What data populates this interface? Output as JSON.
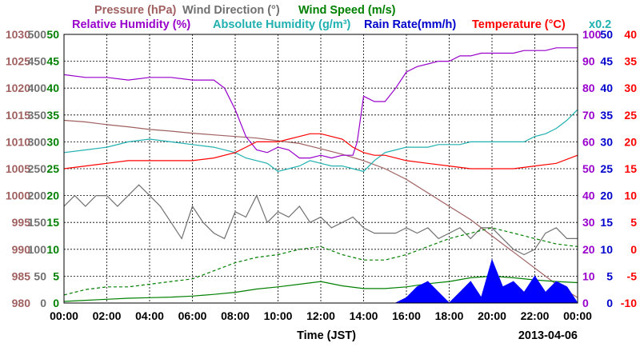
{
  "chart_data": {
    "type": "line",
    "date": "2013-04-06",
    "xlabel": "Time (JST)",
    "x_ticks": [
      "00:00",
      "02:00",
      "04:00",
      "06:00",
      "08:00",
      "10:00",
      "12:00",
      "14:00",
      "16:00",
      "18:00",
      "20:00",
      "22:00",
      "00:00"
    ],
    "x_range_hours": [
      0,
      24
    ],
    "grid": true,
    "headers": {
      "pressure": "Pressure (hPa)",
      "wind_direction": "Wind Direction (°)",
      "wind_speed": "Wind Speed (m/s)",
      "relative_humidity": "Relative Humidity (%)",
      "absolute_humidity": "Absolute Humidity (g/m³)",
      "rain_rate": "Rain Rate(mm/h)",
      "temperature": "Temperature (°C)",
      "absolute_humidity_scale": "x0.2"
    },
    "axes": [
      {
        "name": "pressure",
        "label": "Pressure (hPa)",
        "range": [
          980,
          1030
        ],
        "ticks": [
          "980",
          "985",
          "990",
          "995",
          "1000",
          "1005",
          "1010",
          "1015",
          "1020",
          "1025",
          "1030"
        ],
        "color": "#a06060"
      },
      {
        "name": "wind_direction",
        "label": "Wind Direction (°)",
        "range": [
          0,
          500
        ],
        "ticks": [
          "0",
          "50",
          "100",
          "150",
          "200",
          "250",
          "300",
          "350",
          "400",
          "450",
          "500"
        ],
        "color": "#707070"
      },
      {
        "name": "wind_speed",
        "label": "Wind Speed (m/s)",
        "range": [
          0,
          50
        ],
        "ticks": [
          "0",
          "5",
          "10",
          "15",
          "20",
          "25",
          "30",
          "35",
          "40",
          "45",
          "50"
        ],
        "color": "#008000"
      },
      {
        "name": "relative_humidity",
        "label": "Relative Humidity (%)",
        "range": [
          0,
          100
        ],
        "ticks": [
          "0",
          "10",
          "20",
          "30",
          "40",
          "50",
          "60",
          "70",
          "80",
          "90",
          "100"
        ],
        "color": "#9900cc"
      },
      {
        "name": "rain_rate",
        "label": "Rain Rate(mm/h)",
        "range": [
          0,
          50
        ],
        "ticks": [
          "0",
          "5",
          "10",
          "15",
          "20",
          "25",
          "30",
          "35",
          "40",
          "45",
          "50"
        ],
        "color": "#0000cc"
      },
      {
        "name": "temperature",
        "label": "Temperature (°C)",
        "range": [
          -10,
          40
        ],
        "ticks": [
          "-10",
          "-5",
          "0",
          "5",
          "10",
          "15",
          "20",
          "25",
          "30",
          "35",
          "40"
        ],
        "color": "#ff0000"
      }
    ],
    "series": [
      {
        "name": "Pressure (hPa)",
        "axis": "pressure",
        "color": "#a06060",
        "x": [
          0,
          1,
          2,
          3,
          4,
          5,
          6,
          7,
          8,
          9,
          10,
          11,
          12,
          13,
          14,
          15,
          16,
          17,
          18,
          19,
          20,
          21,
          22,
          23,
          24
        ],
        "y": [
          1014,
          1013.7,
          1013.2,
          1012.8,
          1012.3,
          1012,
          1011.6,
          1011.3,
          1011,
          1010.7,
          1010.2,
          1009.7,
          1008.7,
          1007.7,
          1006.5,
          1005,
          1003,
          1000.5,
          998,
          995.5,
          992.5,
          989.5,
          986.5,
          983.5,
          981
        ]
      },
      {
        "name": "Wind Direction (°)",
        "axis": "wind_direction",
        "color": "#707070",
        "x": [
          0,
          0.5,
          1,
          1.5,
          2,
          2.5,
          3,
          3.5,
          4,
          4.5,
          5,
          5.5,
          6,
          6.5,
          7,
          7.5,
          8,
          8.5,
          9,
          9.5,
          10,
          10.5,
          11,
          11.5,
          12,
          12.5,
          13,
          13.5,
          14,
          14.5,
          15,
          15.5,
          16,
          16.5,
          17,
          17.5,
          18,
          18.5,
          19,
          19.5,
          20,
          20.5,
          21,
          21.5,
          22,
          22.5,
          23,
          23.5,
          24
        ],
        "y": [
          180,
          200,
          180,
          200,
          200,
          180,
          200,
          220,
          200,
          180,
          150,
          120,
          180,
          150,
          130,
          120,
          170,
          160,
          200,
          150,
          170,
          160,
          180,
          150,
          160,
          140,
          150,
          160,
          140,
          130,
          130,
          130,
          140,
          130,
          140,
          120,
          130,
          140,
          120,
          140,
          140,
          120,
          100,
          90,
          100,
          130,
          140,
          120,
          120
        ]
      },
      {
        "name": "Wind Speed (m/s) avg",
        "axis": "wind_speed",
        "color": "#008000",
        "x": [
          0,
          1,
          2,
          3,
          4,
          5,
          6,
          7,
          8,
          9,
          10,
          11,
          12,
          13,
          14,
          15,
          16,
          17,
          18,
          19,
          20,
          21,
          22,
          23,
          24
        ],
        "y": [
          0.3,
          0.5,
          0.7,
          0.9,
          1.0,
          1.1,
          1.3,
          1.6,
          2.0,
          2.6,
          3.0,
          3.5,
          4.0,
          3.2,
          2.7,
          2.7,
          3.0,
          3.6,
          4.0,
          4.7,
          5.0,
          4.7,
          4.3,
          4.0,
          3.8
        ]
      },
      {
        "name": "Wind Speed (m/s) gust",
        "axis": "wind_speed",
        "color": "#008000",
        "dashed": true,
        "x": [
          0,
          1,
          2,
          3,
          4,
          5,
          6,
          7,
          8,
          9,
          10,
          11,
          12,
          13,
          14,
          15,
          16,
          17,
          18,
          19,
          20,
          21,
          22,
          23,
          24
        ],
        "y": [
          1.5,
          2.5,
          3,
          3,
          3.5,
          4,
          4.5,
          6,
          7.5,
          8.5,
          9,
          10,
          10.5,
          9,
          8,
          8,
          9,
          10.5,
          12,
          13,
          14,
          13,
          12,
          11,
          10.5
        ]
      },
      {
        "name": "Relative Humidity (%)",
        "axis": "relative_humidity",
        "color": "#9900cc",
        "x": [
          0,
          1,
          2,
          3,
          4,
          5,
          6,
          7,
          7.5,
          8,
          8.5,
          9,
          9.5,
          10,
          10.5,
          11,
          11.5,
          12,
          12.5,
          13,
          13.5,
          13.7,
          14,
          14.5,
          15,
          15.5,
          16,
          16.5,
          17,
          17.5,
          18,
          18.5,
          19,
          19.5,
          20,
          20.5,
          21,
          21.5,
          22,
          22.5,
          23,
          23.5,
          24
        ],
        "y": [
          85,
          84,
          84,
          83,
          84,
          84,
          83,
          83,
          80,
          72,
          62,
          57,
          56,
          58,
          57,
          54,
          54,
          55,
          54,
          55,
          55,
          60,
          77,
          75,
          75,
          80,
          86,
          88,
          89,
          90,
          90,
          92,
          92,
          93,
          93,
          93,
          93,
          94,
          94,
          94,
          95,
          95,
          95
        ]
      },
      {
        "name": "Absolute Humidity (g/m³)",
        "axis": "relative_humidity",
        "color": "#20b0b0",
        "x": [
          0,
          1,
          2,
          3,
          4,
          5,
          6,
          7,
          8,
          8.5,
          9,
          9.5,
          10,
          10.5,
          11,
          11.5,
          12,
          12.5,
          13,
          13.5,
          14,
          14.5,
          15,
          15.5,
          16,
          16.5,
          17,
          17.5,
          18,
          18.5,
          19,
          19.5,
          20,
          20.5,
          21,
          21.5,
          22,
          22.5,
          23,
          23.5,
          24
        ],
        "y": [
          56,
          57,
          58,
          60,
          61,
          60,
          59,
          58,
          56,
          54,
          53,
          52,
          49,
          50,
          51,
          53,
          52,
          51,
          51,
          50,
          49,
          53,
          56,
          57,
          58,
          58,
          58,
          59,
          59,
          59,
          60,
          60,
          60,
          60,
          60,
          60,
          62,
          63,
          65,
          68,
          72
        ]
      },
      {
        "name": "Rain Rate(mm/h)",
        "axis": "rain_rate",
        "color": "#0000ff",
        "fill": true,
        "x": [
          0,
          15.5,
          16,
          16.5,
          17,
          17.5,
          18,
          18.5,
          19,
          19.5,
          20,
          20.5,
          21,
          21.5,
          22,
          22.5,
          23,
          23.5,
          24
        ],
        "y": [
          0,
          0,
          1,
          3,
          4,
          2,
          0,
          2,
          4,
          1,
          8,
          3,
          4,
          2,
          5,
          2,
          4,
          3,
          0
        ]
      },
      {
        "name": "Temperature (°C)",
        "axis": "temperature",
        "color": "#ff0000",
        "x": [
          0,
          1,
          2,
          3,
          4,
          5,
          6,
          7,
          8,
          8.5,
          9,
          9.5,
          10,
          10.5,
          11,
          11.5,
          12,
          12.5,
          13,
          13.5,
          14,
          14.5,
          15,
          15.5,
          16,
          17,
          18,
          19,
          20,
          21,
          22,
          23,
          24
        ],
        "y": [
          15,
          15.5,
          16,
          16.5,
          16.5,
          16.5,
          16.5,
          17,
          18,
          19,
          20,
          20,
          20,
          20.5,
          21,
          21.5,
          21.5,
          21,
          20.5,
          19,
          18,
          17.5,
          17.5,
          17,
          16.5,
          16,
          15.5,
          15,
          15,
          15,
          15.5,
          16,
          17.5
        ]
      }
    ]
  }
}
